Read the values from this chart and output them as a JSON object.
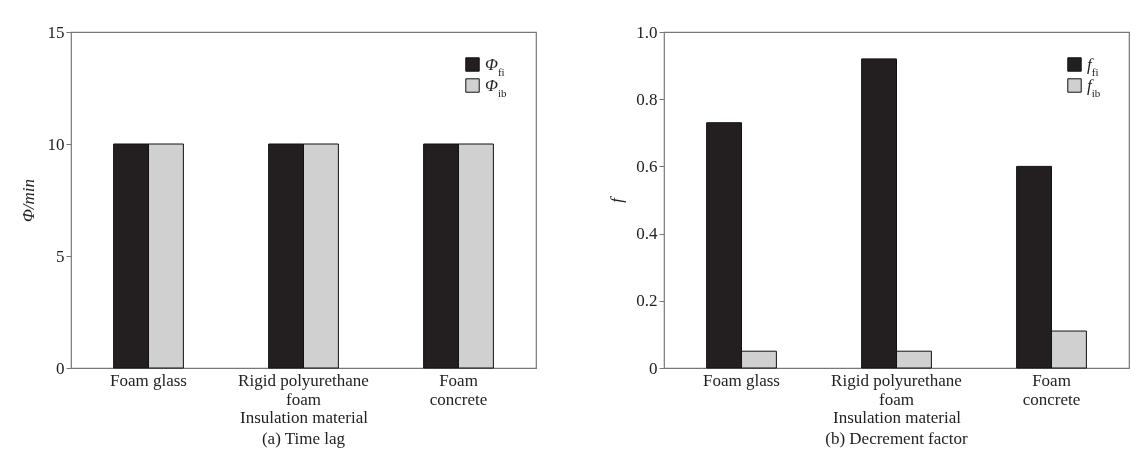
{
  "chart_data": [
    {
      "type": "bar",
      "title": "(a) Time lag",
      "xlabel": "Insulation material",
      "ylabel": "Φ/min",
      "categories": [
        "Foam glass",
        "Rigid polyurethane foam",
        "Foam concrete"
      ],
      "series": [
        {
          "name": "Φ$_{fi}$",
          "color": "#231f20",
          "values": [
            10,
            10,
            10
          ]
        },
        {
          "name": "Φ$_{ib}$",
          "color": "#d0d0d0",
          "values": [
            10,
            10,
            10
          ]
        }
      ],
      "ylim": [
        0,
        15
      ],
      "yticks": [
        0,
        5,
        10,
        15
      ],
      "legend": "top right",
      "grid": false
    },
    {
      "type": "bar",
      "title": "(b) Decrement factor",
      "xlabel": "Insulation material",
      "ylabel": "f",
      "categories": [
        "Foam glass",
        "Rigid polyurethane foam",
        "Foam concrete"
      ],
      "series": [
        {
          "name": "f$_{fi}$",
          "color": "#231f20",
          "values": [
            0.73,
            0.92,
            0.6
          ]
        },
        {
          "name": "f$_{ib}$",
          "color": "#d0d0d0",
          "values": [
            0.05,
            0.05,
            0.11
          ]
        }
      ],
      "ylim": [
        0,
        1
      ],
      "yticks": [
        0,
        0.2,
        0.4,
        0.6,
        0.8,
        {
          "value": 1,
          "label": "1.0"
        }
      ],
      "legend": "top right",
      "grid": false
    }
  ]
}
